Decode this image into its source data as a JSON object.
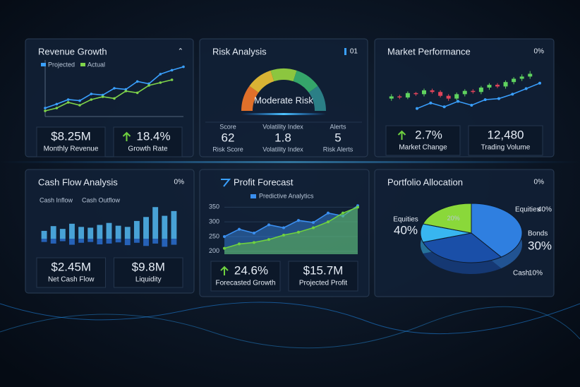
{
  "revenue": {
    "title": "Revenue Growth",
    "icon": "⌃",
    "chart": {
      "type": "line",
      "ylim": [
        0,
        100
      ],
      "series": [
        {
          "name": "Projected",
          "color": "#3aa0ff",
          "values": [
            15,
            22,
            30,
            28,
            40,
            38,
            50,
            48,
            62,
            58,
            75,
            82,
            88
          ]
        },
        {
          "name": "Actual",
          "color": "#7fd44a",
          "values": [
            10,
            15,
            25,
            20,
            30,
            35,
            32,
            45,
            42,
            55,
            60,
            65
          ]
        }
      ]
    },
    "stats": [
      {
        "value": "$8.25M",
        "label": "Monthly Revenue"
      },
      {
        "value": "18.4%",
        "label": "Growth Rate",
        "trend": "up"
      }
    ]
  },
  "risk": {
    "title": "Risk Analysis",
    "icon": "01",
    "gauge_label": "Moderate Risk",
    "gauge_colors": [
      "#e0702a",
      "#d9b334",
      "#8cc63f",
      "#35a56a",
      "#2b7f86"
    ],
    "stats": [
      {
        "caption": "Score",
        "value": 62,
        "label": "Risk Score"
      },
      {
        "caption": "Volatility Index",
        "value": 1.8,
        "label": "Volatility Index"
      },
      {
        "caption": "Alerts",
        "value": 5,
        "label": "Risk Alerts"
      }
    ]
  },
  "market": {
    "title": "Market Performance",
    "icon": "0%",
    "chart": {
      "type": "candlestick",
      "ylim": [
        0,
        100
      ],
      "up_color": "#5fd35f",
      "down_color": "#e0445a",
      "open": [
        30,
        34,
        32,
        40,
        38,
        45,
        42,
        35,
        30,
        38,
        44,
        42,
        50,
        55,
        52,
        60,
        66,
        70
      ],
      "close": [
        34,
        32,
        40,
        38,
        45,
        42,
        35,
        30,
        38,
        44,
        42,
        50,
        55,
        52,
        60,
        66,
        70,
        75
      ],
      "high": [
        38,
        37,
        43,
        42,
        48,
        48,
        45,
        38,
        41,
        47,
        47,
        53,
        58,
        58,
        63,
        69,
        74,
        80
      ],
      "low": [
        26,
        29,
        29,
        35,
        34,
        39,
        32,
        26,
        27,
        34,
        39,
        38,
        46,
        49,
        48,
        56,
        62,
        66
      ],
      "trend": {
        "color": "#3aa0ff",
        "values": [
          12,
          22,
          15,
          25,
          18,
          28,
          30,
          38,
          48,
          58
        ]
      }
    },
    "stats": [
      {
        "value": "2.7%",
        "label": "Market Change",
        "trend": "up"
      },
      {
        "value": "12,480",
        "label": "Trading Volume"
      }
    ]
  },
  "cash": {
    "title": "Cash Flow Analysis",
    "icon": "0%",
    "chart": {
      "type": "bar",
      "ylim": [
        -30,
        100
      ],
      "series": [
        {
          "name": "Cash Inflow",
          "color": "#4fb0e8",
          "values": [
            20,
            32,
            25,
            38,
            30,
            28,
            35,
            40,
            33,
            30,
            45,
            55,
            80,
            58,
            70
          ]
        },
        {
          "name": "Cash Outflow",
          "color": "#2a6fd0",
          "values": [
            -8,
            -12,
            -6,
            -15,
            -10,
            -8,
            -14,
            -12,
            -9,
            -16,
            -10,
            -18,
            -12,
            -20,
            -15
          ]
        }
      ]
    },
    "stats": [
      {
        "value": "$2.45M",
        "label": "Net Cash Flow"
      },
      {
        "value": "$9.8M",
        "label": "Liquidity"
      }
    ]
  },
  "profit": {
    "title": "Profit Forecast",
    "legend": "Predictive Analytics",
    "chart": {
      "type": "area",
      "ylim": [
        190,
        370
      ],
      "yticks": [
        350,
        300,
        250,
        200
      ],
      "series": [
        {
          "color": "#3a8ff0",
          "values": [
            250,
            275,
            262,
            290,
            280,
            305,
            298,
            330,
            320,
            355
          ]
        },
        {
          "color": "#6fd13f",
          "values": [
            210,
            225,
            230,
            240,
            255,
            265,
            280,
            300,
            330,
            350
          ]
        }
      ]
    },
    "stats": [
      {
        "value": "24.6%",
        "label": "Forecasted Growth",
        "trend": "up"
      },
      {
        "value": "$15.7M",
        "label": "Projected Profit"
      }
    ]
  },
  "portfolio": {
    "title": "Portfolio Allocation",
    "icon": "0%",
    "chart": {
      "type": "pie",
      "categories": [
        "Equities",
        "Bonds",
        "Cash",
        null
      ],
      "values": [
        40,
        30,
        10,
        20
      ],
      "value_labels": [
        "40%",
        "30%",
        "10%",
        "20%"
      ],
      "colors": [
        "#2f7fe0",
        "#1a4fa8",
        "#38b6f0",
        "#8ad83a"
      ]
    }
  }
}
